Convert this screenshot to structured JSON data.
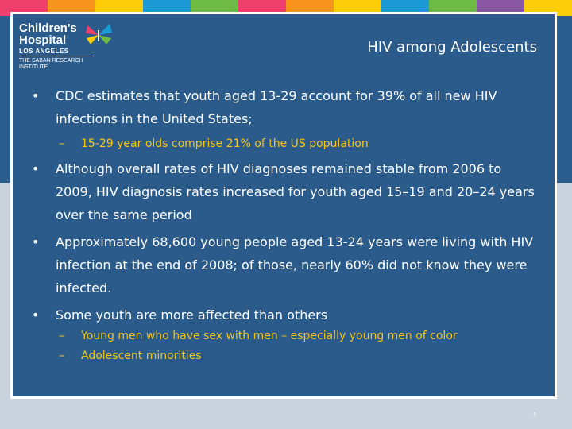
{
  "colors": {
    "stripe_colors": [
      "#ef3f6d",
      "#f7941d",
      "#fecd0a",
      "#1c9ad6",
      "#6dbb45",
      "#ef3f6d",
      "#f7941d",
      "#fecd0a",
      "#1c9ad6",
      "#6dbb45",
      "#8a57a5",
      "#fecd0a"
    ],
    "panel": "#2b5b8a",
    "subtext": "#f5c518"
  },
  "logo": {
    "line1": "Children's",
    "line2": "Hospital",
    "line3": "LOS ANGELES",
    "line4": "THE SABAN RESEARCH",
    "line5": "INSTITUTE",
    "icon": "butterfly-icon"
  },
  "slide": {
    "title": "HIV among Adolescents",
    "bullet_symbol": "•",
    "dash_symbol": "–",
    "bullets": [
      {
        "text": "CDC estimates that youth aged 13-29 account for 39% of all new HIV infections in the United States;",
        "subs": [
          "15-29 year olds comprise 21% of the US population"
        ]
      },
      {
        "text": "Although overall rates of HIV diagnoses remained stable from 2006 to 2009, HIV diagnosis rates increased for youth aged 15–19 and 20–24 years over the same period",
        "subs": []
      },
      {
        "text": "Approximately 68,600 young people aged 13-24 years were living with HIV infection at the end of 2008; of those, nearly 60% did not know they were infected.",
        "subs": []
      },
      {
        "text": "Some youth are more affected than others",
        "subs": [
          "Young men who have sex with men – especially young men of color",
          "Adolescent minorities"
        ]
      }
    ],
    "page_number": "5"
  }
}
